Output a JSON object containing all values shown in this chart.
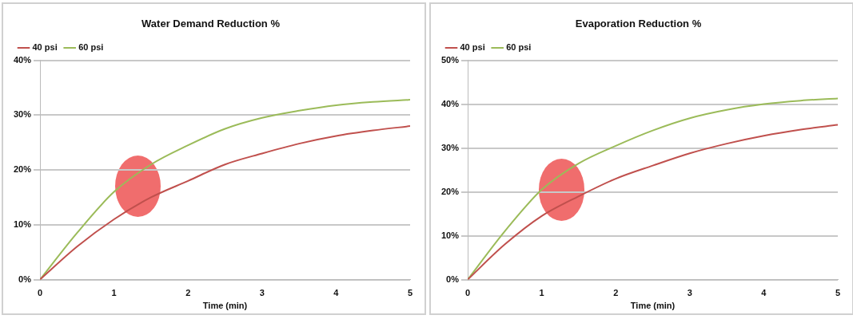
{
  "chart_data": [
    {
      "type": "line",
      "title": "Water Demand Reduction %",
      "xlabel": "Time (min)",
      "x": [
        0,
        0.5,
        1,
        1.5,
        2,
        2.5,
        3,
        3.5,
        4,
        4.5,
        5
      ],
      "xlim": [
        0,
        5
      ],
      "xticks": [
        0,
        1,
        2,
        3,
        4,
        5
      ],
      "ylim": [
        0,
        40
      ],
      "yticks": [
        {
          "value": 0,
          "label": "0%"
        },
        {
          "value": 10,
          "label": "10%"
        },
        {
          "value": 20,
          "label": "20%"
        },
        {
          "value": 30,
          "label": "30%"
        },
        {
          "value": 40,
          "label": "40%"
        }
      ],
      "grid": "y",
      "legend": "top left",
      "marker": "none",
      "line_style": "solid",
      "series": [
        {
          "name": "40 psi",
          "color": "#c0504d",
          "values": [
            0,
            6,
            11,
            15,
            18,
            21,
            23,
            24.8,
            26.2,
            27.2,
            28
          ]
        },
        {
          "name": "60 psi",
          "color": "#9bbb59",
          "values": [
            0,
            8.5,
            16,
            21,
            24.5,
            27.5,
            29.5,
            30.8,
            31.8,
            32.4,
            32.8
          ]
        }
      ]
    },
    {
      "type": "line",
      "title": "Evaporation Reduction %",
      "xlabel": "Time (min)",
      "x": [
        0,
        0.5,
        1,
        1.5,
        2,
        2.5,
        3,
        3.5,
        4,
        4.5,
        5
      ],
      "xlim": [
        0,
        5
      ],
      "xticks": [
        0,
        1,
        2,
        3,
        4,
        5
      ],
      "ylim": [
        0,
        50
      ],
      "yticks": [
        {
          "value": 0,
          "label": "0%"
        },
        {
          "value": 10,
          "label": "10%"
        },
        {
          "value": 20,
          "label": "20%"
        },
        {
          "value": 30,
          "label": "30%"
        },
        {
          "value": 40,
          "label": "40%"
        },
        {
          "value": 50,
          "label": "50%"
        }
      ],
      "grid": "y",
      "legend": "top left",
      "marker": "none",
      "line_style": "solid",
      "series": [
        {
          "name": "40 psi",
          "color": "#c0504d",
          "values": [
            0,
            8,
            14.5,
            19,
            23,
            26,
            28.8,
            31,
            32.8,
            34.2,
            35.3
          ]
        },
        {
          "name": "60 psi",
          "color": "#9bbb59",
          "values": [
            0,
            11,
            20.5,
            26.5,
            30.5,
            34,
            36.8,
            38.7,
            40,
            40.8,
            41.3
          ]
        }
      ]
    }
  ]
}
